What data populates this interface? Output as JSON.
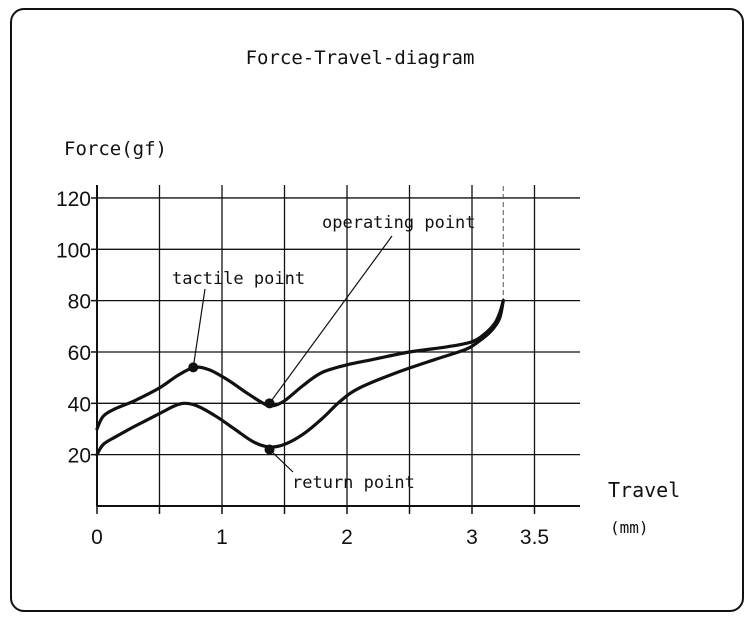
{
  "chart_data": {
    "type": "line",
    "title": "Force-Travel-diagram",
    "ylabel": "Force(gf)",
    "xlabel": "Travel",
    "xunit": "(mm)",
    "xlim": [
      0,
      3.5
    ],
    "ylim": [
      0,
      120
    ],
    "x_ticks": [
      0,
      1,
      2,
      3,
      3.5
    ],
    "x_tick_labels": [
      "0",
      "1",
      "2",
      "3",
      "3.5"
    ],
    "y_ticks": [
      20,
      40,
      60,
      80,
      100,
      120
    ],
    "y_tick_labels": [
      "20",
      "40",
      "60",
      "80",
      "100",
      "120"
    ],
    "grid": true,
    "series": [
      {
        "values_x": [
          0,
          0.05,
          0.15,
          0.3,
          0.5,
          0.65,
          0.78,
          0.9,
          1.05,
          1.2,
          1.33,
          1.4,
          1.5,
          1.65,
          1.8,
          2.0,
          2.2,
          2.5,
          2.8,
          3.0,
          3.1,
          3.18,
          3.22,
          3.25
        ],
        "values_y": [
          30,
          35,
          38,
          41,
          46,
          51,
          54,
          53,
          49,
          44,
          40,
          39,
          41,
          47,
          52,
          55,
          57,
          60,
          62,
          64,
          67,
          71,
          75,
          80
        ]
      },
      {
        "values_x": [
          0,
          0.05,
          0.15,
          0.3,
          0.5,
          0.62,
          0.7,
          0.8,
          0.95,
          1.1,
          1.25,
          1.38,
          1.5,
          1.65,
          1.8,
          1.95,
          2.1,
          2.4,
          2.7,
          2.95,
          3.05,
          3.15,
          3.22,
          3.25
        ],
        "values_y": [
          20,
          24,
          27,
          31,
          36,
          39,
          40,
          39,
          35,
          30,
          25,
          23,
          24,
          28,
          34,
          41,
          46,
          52,
          57,
          61,
          64,
          68,
          73,
          80
        ]
      }
    ],
    "annotations": [
      {
        "text": "tactile point",
        "x": 0.77,
        "y": 54
      },
      {
        "text": "operating point",
        "x": 1.38,
        "y": 40
      },
      {
        "text": "return point",
        "x": 1.38,
        "y": 22
      }
    ]
  }
}
